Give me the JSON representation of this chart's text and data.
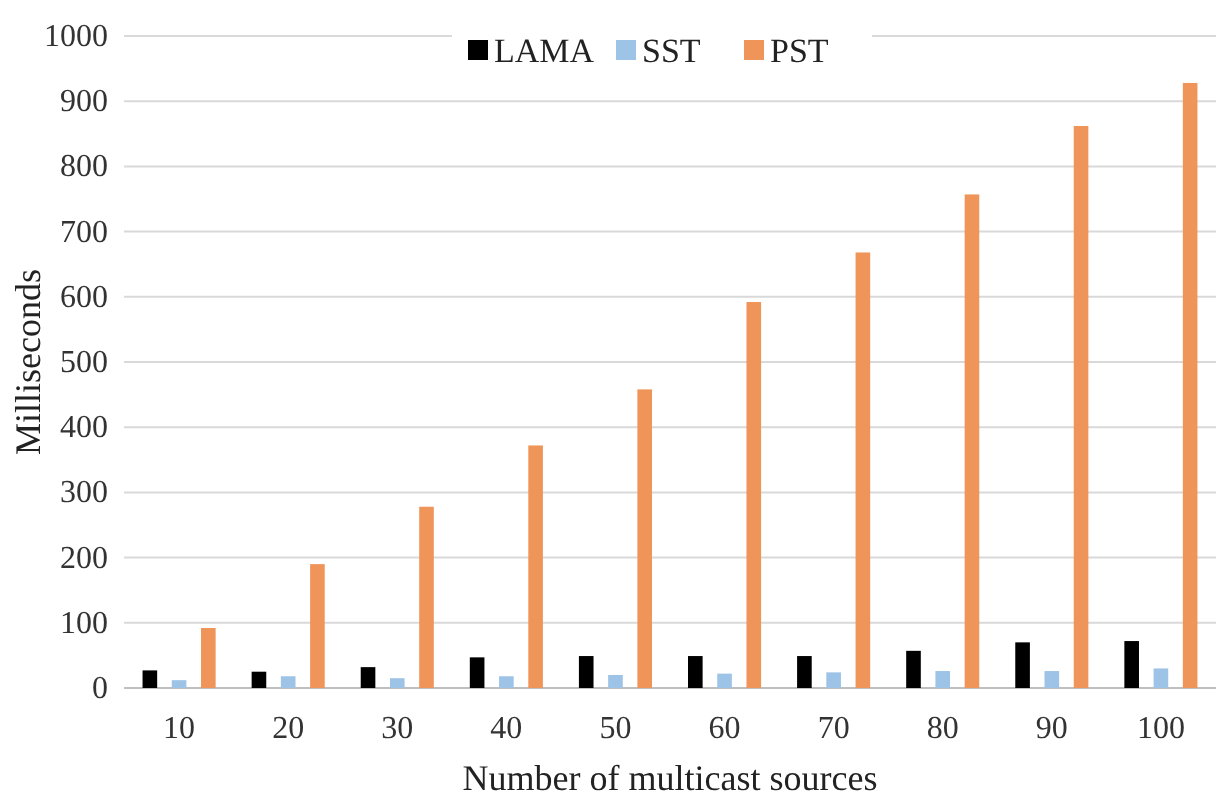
{
  "chart_data": {
    "type": "bar",
    "xlabel": "Number of multicast sources",
    "ylabel": "Milliseconds",
    "categories": [
      "10",
      "20",
      "30",
      "40",
      "50",
      "60",
      "70",
      "80",
      "90",
      "100"
    ],
    "series": [
      {
        "name": "LAMA",
        "color": "#000000",
        "values": [
          27,
          25,
          32,
          47,
          49,
          49,
          49,
          57,
          70,
          72
        ]
      },
      {
        "name": "SST",
        "color": "#9dc3e6",
        "values": [
          12,
          18,
          15,
          18,
          20,
          22,
          24,
          26,
          26,
          30
        ]
      },
      {
        "name": "PST",
        "color": "#f0955a",
        "values": [
          92,
          190,
          278,
          372,
          458,
          592,
          668,
          757,
          862,
          928
        ]
      }
    ],
    "ylim": [
      0,
      1000
    ],
    "yticks": [
      0,
      100,
      200,
      300,
      400,
      500,
      600,
      700,
      800,
      900,
      1000
    ],
    "grid": "y",
    "legend": "top"
  }
}
